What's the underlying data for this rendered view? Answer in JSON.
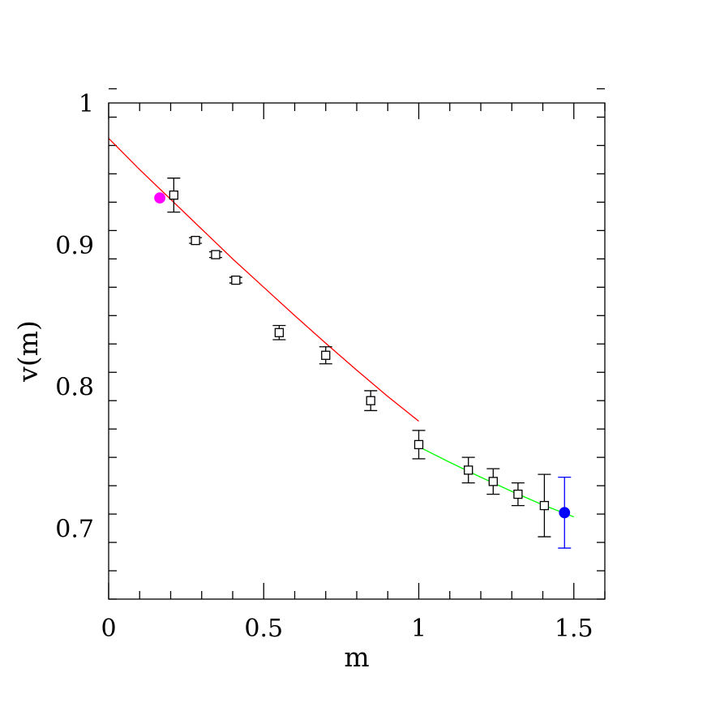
{
  "chart_data": {
    "type": "scatter",
    "title": "",
    "xlabel": "m",
    "ylabel": "v(m)",
    "xlim": [
      0,
      1.6
    ],
    "ylim": [
      0.65,
      1.0
    ],
    "x_ticks_major": [
      0,
      0.5,
      1,
      1.5
    ],
    "x_tick_labels": [
      "0",
      "0.5",
      "1",
      "1.5"
    ],
    "x_ticks_minor_step": 0.1,
    "y_ticks_major": [
      0.7,
      0.8,
      0.9,
      1.0
    ],
    "y_tick_labels": [
      "0.7",
      "0.8",
      "0.9",
      "1"
    ],
    "y_ticks_minor_step": 0.02,
    "grid": false,
    "legend": "none",
    "series": [
      {
        "marker": "open-square",
        "color": "#000000",
        "points": [
          {
            "x": 0.21,
            "y": 0.935,
            "err": 0.012
          },
          {
            "x": 0.28,
            "y": 0.903,
            "err": 0.002
          },
          {
            "x": 0.345,
            "y": 0.893,
            "err": 0.002
          },
          {
            "x": 0.41,
            "y": 0.875,
            "err": 0.002
          },
          {
            "x": 0.55,
            "y": 0.838,
            "err": 0.005
          },
          {
            "x": 0.7,
            "y": 0.822,
            "err": 0.006
          },
          {
            "x": 0.845,
            "y": 0.79,
            "err": 0.007
          },
          {
            "x": 1.0,
            "y": 0.759,
            "err": 0.01
          },
          {
            "x": 1.16,
            "y": 0.741,
            "err": 0.009
          },
          {
            "x": 1.24,
            "y": 0.733,
            "err": 0.009
          },
          {
            "x": 1.32,
            "y": 0.724,
            "err": 0.008
          },
          {
            "x": 1.405,
            "y": 0.716,
            "err": 0.022
          }
        ]
      },
      {
        "marker": "filled-circle",
        "color": "#ff00ff",
        "points": [
          {
            "x": 0.165,
            "y": 0.933,
            "err": 0
          }
        ]
      },
      {
        "marker": "filled-circle",
        "color": "#0000ff",
        "points": [
          {
            "x": 1.47,
            "y": 0.711,
            "err": 0.025
          }
        ]
      }
    ],
    "curves": [
      {
        "color": "#ff0000",
        "points": [
          [
            0,
            0.975
          ],
          [
            0.1,
            0.953
          ],
          [
            0.2,
            0.932
          ],
          [
            0.3,
            0.911
          ],
          [
            0.4,
            0.89
          ],
          [
            0.5,
            0.87
          ],
          [
            0.6,
            0.85
          ],
          [
            0.7,
            0.8305
          ],
          [
            0.8,
            0.8115
          ],
          [
            0.9,
            0.793
          ],
          [
            1.0,
            0.7755
          ]
        ]
      },
      {
        "color": "#00ff00",
        "points": [
          [
            1.0,
            0.7575
          ],
          [
            1.1,
            0.7465
          ],
          [
            1.2,
            0.736
          ],
          [
            1.3,
            0.726
          ],
          [
            1.4,
            0.7165
          ],
          [
            1.5,
            0.708
          ]
        ]
      }
    ]
  }
}
